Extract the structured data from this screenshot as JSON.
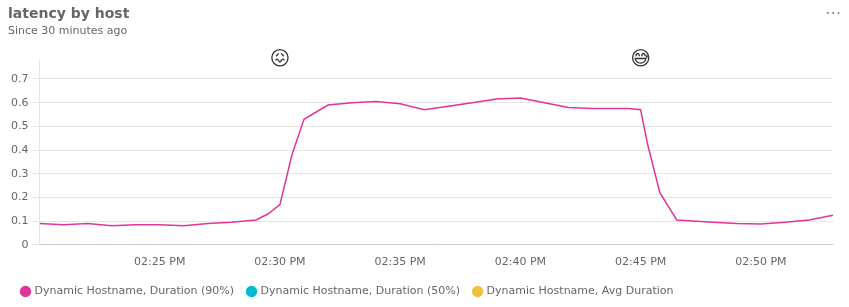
{
  "chart_data": {
    "type": "line",
    "title": "latency by host",
    "subtitle": "Since 30 minutes ago",
    "x": [
      0,
      1,
      2,
      3,
      4,
      5,
      6,
      7,
      8,
      9,
      9.5,
      10,
      10.5,
      11,
      12,
      13,
      14,
      15,
      16,
      17,
      18,
      19,
      20,
      21,
      22,
      23,
      24,
      24.5,
      25,
      25.3,
      25.8,
      26.5,
      28,
      29,
      30,
      31,
      32,
      33
    ],
    "series": [
      {
        "name": "Dynamic Hostname, Duration (90%)",
        "color": "#e0359a",
        "values": [
          0.09,
          0.085,
          0.09,
          0.08,
          0.085,
          0.085,
          0.08,
          0.09,
          0.095,
          0.105,
          0.13,
          0.17,
          0.38,
          0.53,
          0.59,
          0.6,
          0.605,
          0.595,
          0.57,
          0.585,
          0.6,
          0.615,
          0.62,
          0.6,
          0.58,
          0.575,
          0.575,
          0.575,
          0.57,
          0.42,
          0.22,
          0.105,
          0.095,
          0.09,
          0.088,
          0.095,
          0.105,
          0.125
        ]
      },
      {
        "name": "Dynamic Hostname, Duration (50%)",
        "color": "#00bcd4",
        "values": [
          null,
          null,
          null,
          null,
          null,
          null,
          null,
          null,
          null,
          null,
          null,
          null,
          null,
          null,
          null,
          null,
          null,
          null,
          null,
          null,
          null,
          null,
          null,
          null,
          null,
          null,
          null,
          null,
          null,
          null,
          null,
          null,
          null,
          null,
          null,
          null,
          null,
          null
        ]
      },
      {
        "name": "Dynamic Hostname, Avg Duration",
        "color": "#f0c040",
        "values": [
          null,
          null,
          null,
          null,
          null,
          null,
          null,
          null,
          null,
          null,
          null,
          null,
          null,
          null,
          null,
          null,
          null,
          null,
          null,
          null,
          null,
          null,
          null,
          null,
          null,
          null,
          null,
          null,
          null,
          null,
          null,
          null,
          null,
          null,
          null,
          null,
          null,
          null
        ]
      }
    ],
    "xlim": [
      0,
      33
    ],
    "xticks": [
      {
        "value": 5,
        "label": "02:25 PM"
      },
      {
        "value": 10,
        "label": "02:30 PM"
      },
      {
        "value": 15,
        "label": "02:35 PM"
      },
      {
        "value": 20,
        "label": "02:40 PM"
      },
      {
        "value": 25,
        "label": "02:45 PM"
      },
      {
        "value": 30,
        "label": "02:50 PM"
      }
    ],
    "ylim": [
      0,
      0.78
    ],
    "yticks": [
      0,
      0.1,
      0.2,
      0.3,
      0.4,
      0.5,
      0.6,
      0.7
    ],
    "grid": true,
    "legend": "bottom",
    "annotations": [
      {
        "text": "😖",
        "x": 10,
        "y": 0.74
      },
      {
        "text": "😅",
        "x": 25,
        "y": 0.74
      },
      {
        "text": "⋯"
      }
    ]
  }
}
